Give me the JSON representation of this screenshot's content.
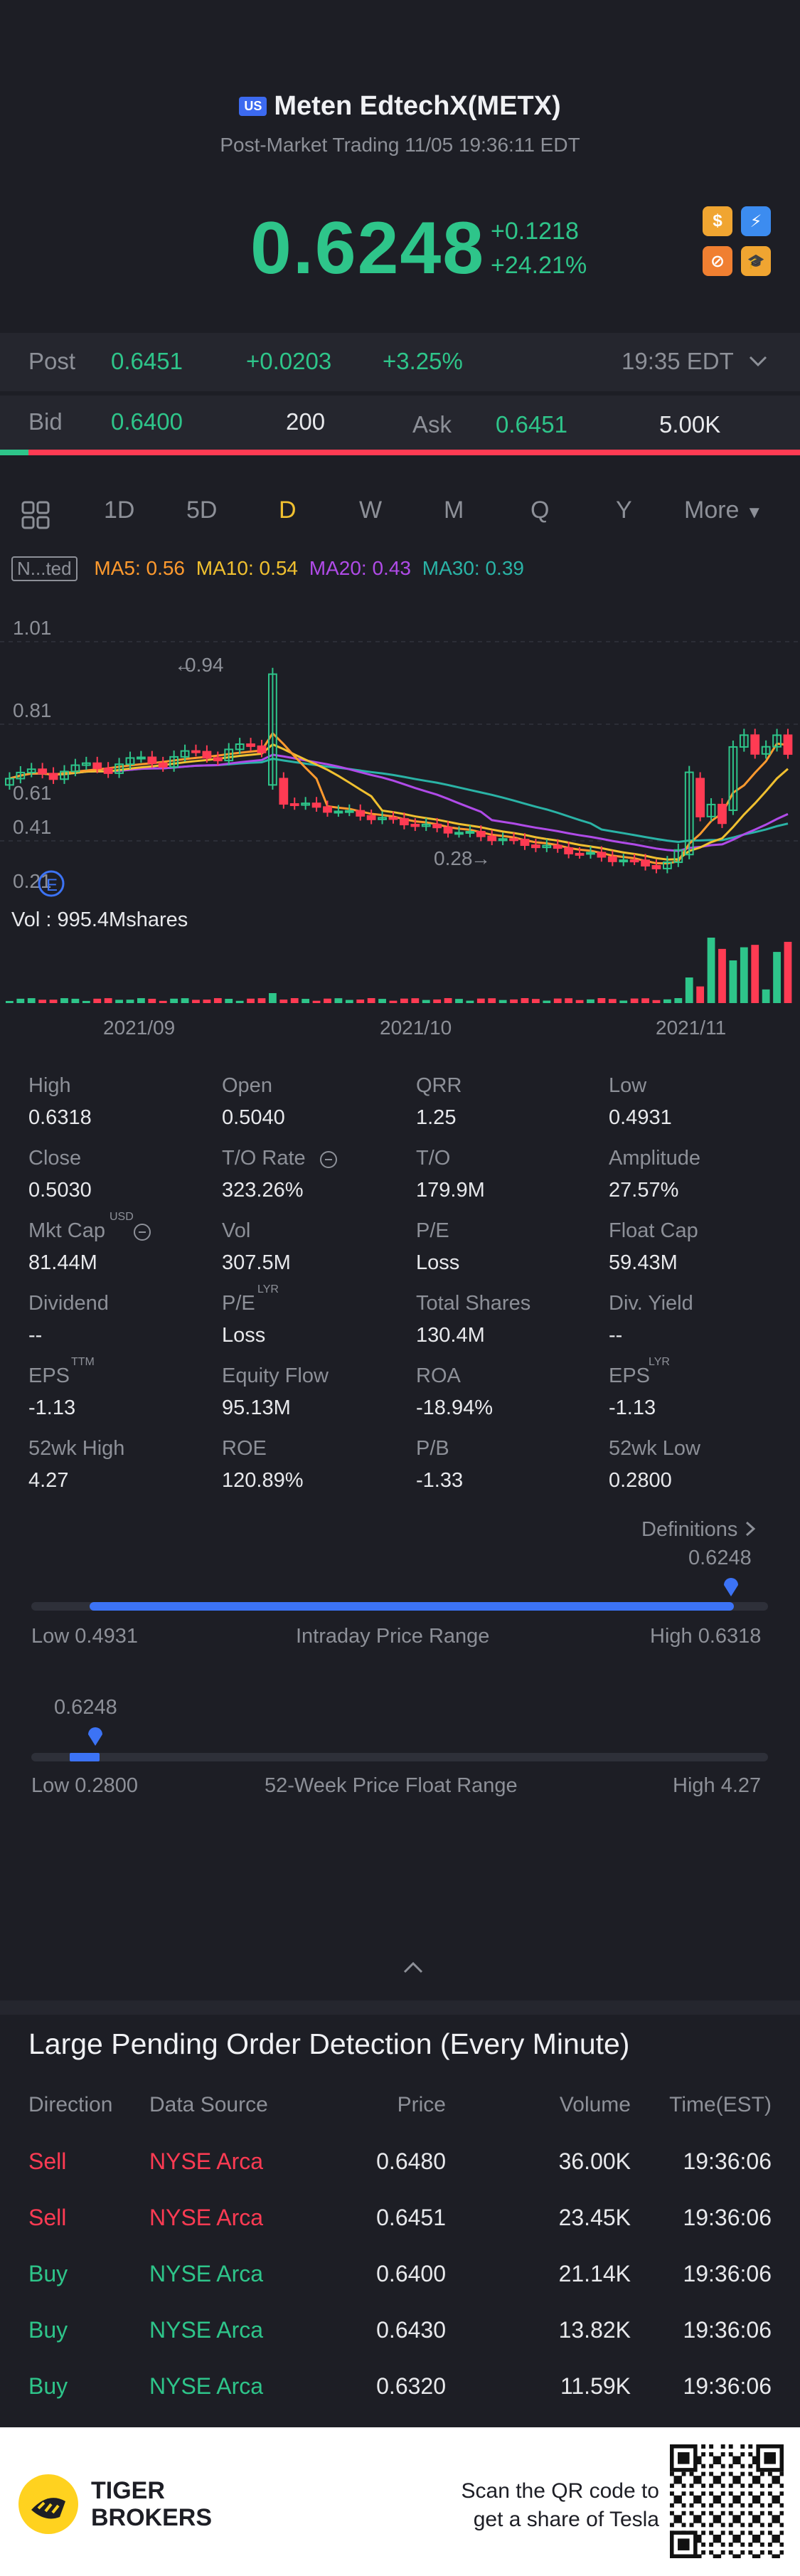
{
  "header": {
    "market_badge": "US",
    "title": "Meten EdtechX(METX)",
    "subtitle": "Post-Market Trading 11/05 19:36:11 EDT",
    "price": "0.6248",
    "change_abs": "+0.1218",
    "change_pct": "+24.21%",
    "badges": [
      "$",
      "⚡",
      "⊘",
      "🎓"
    ]
  },
  "post_row": {
    "label": "Post",
    "price": "0.6451",
    "change_abs": "+0.0203",
    "change_pct": "+3.25%",
    "time": "19:35 EDT"
  },
  "bid_row": {
    "bid_label": "Bid",
    "bid_price": "0.6400",
    "bid_size": "200",
    "ask_label": "Ask",
    "ask_price": "0.6451",
    "ask_size": "5.00K"
  },
  "chart_tabs": [
    "1D",
    "5D",
    "D",
    "W",
    "M",
    "Q",
    "Y"
  ],
  "chart_tab_active": "D",
  "chart_more": "More",
  "ma_legend": {
    "box": "N...ted",
    "ma5": "MA5: 0.56",
    "ma10": "MA10: 0.54",
    "ma20": "MA20: 0.43",
    "ma30": "MA30: 0.39"
  },
  "chart_data": {
    "type": "candlestick",
    "y_ticks": [
      "1.01",
      "0.81",
      "0.61",
      "0.41",
      "0.21"
    ],
    "x_ticks": [
      "2021/09",
      "2021/10",
      "2021/11"
    ],
    "annotations": {
      "high_marker": "0.94",
      "low_marker": "0.28"
    },
    "volume_label": "Vol : 995.4Mshares",
    "colors": {
      "up": "#2ec58a",
      "down": "#ff3b53",
      "ma5": "#ff9a2e",
      "ma10": "#f0c030",
      "ma20": "#b04be8",
      "ma30": "#2ab3a6"
    }
  },
  "stats": [
    {
      "label": "High",
      "value": "0.6318"
    },
    {
      "label": "Open",
      "value": "0.5040"
    },
    {
      "label": "QRR",
      "value": "1.25"
    },
    {
      "label": "Low",
      "value": "0.4931"
    },
    {
      "label": "Close",
      "value": "0.5030"
    },
    {
      "label": "T/O Rate",
      "value": "323.26%"
    },
    {
      "label": "T/O",
      "value": "179.9M"
    },
    {
      "label": "Amplitude",
      "value": "27.57%"
    },
    {
      "label": "Mkt Cap",
      "value": "81.44M"
    },
    {
      "label": "Vol",
      "value": "307.5M"
    },
    {
      "label": "P/E",
      "value": "Loss"
    },
    {
      "label": "Float Cap",
      "value": "59.43M"
    },
    {
      "label": "Dividend",
      "value": "--"
    },
    {
      "label": "P/E",
      "value": "Loss"
    },
    {
      "label": "Total Shares",
      "value": "130.4M"
    },
    {
      "label": "Div. Yield",
      "value": "--"
    },
    {
      "label": "EPS",
      "value": "-1.13"
    },
    {
      "label": "Equity Flow",
      "value": "95.13M"
    },
    {
      "label": "ROA",
      "value": "-18.94%"
    },
    {
      "label": "EPS",
      "value": "-1.13"
    },
    {
      "label": "52wk High",
      "value": "4.27"
    },
    {
      "label": "ROE",
      "value": "120.89%"
    },
    {
      "label": "P/B",
      "value": "-1.33"
    },
    {
      "label": "52wk Low",
      "value": "0.2800"
    }
  ],
  "stat_superscripts": {
    "mktcap": "USD",
    "pe2": "LYR",
    "eps1": "TTM",
    "eps2": "LYR"
  },
  "definitions_link": "Definitions",
  "intraday_range": {
    "current": "0.6248",
    "low": "Low 0.4931",
    "title": "Intraday Price Range",
    "high": "High 0.6318",
    "fraction": 0.93
  },
  "week52_range": {
    "current": "0.6248",
    "low": "Low 0.2800",
    "title": "52-Week Price Float Range",
    "high": "High 4.27",
    "fraction": 0.09
  },
  "pending_orders": {
    "title": "Large Pending Order Detection (Every Minute)",
    "headers": [
      "Direction",
      "Data Source",
      "Price",
      "Volume",
      "Time(EST)"
    ],
    "rows": [
      {
        "direction": "Sell",
        "source": "NYSE Arca",
        "price": "0.6480",
        "volume": "36.00K",
        "time": "19:36:06"
      },
      {
        "direction": "Sell",
        "source": "NYSE Arca",
        "price": "0.6451",
        "volume": "23.45K",
        "time": "19:36:06"
      },
      {
        "direction": "Buy",
        "source": "NYSE Arca",
        "price": "0.6400",
        "volume": "21.14K",
        "time": "19:36:06"
      },
      {
        "direction": "Buy",
        "source": "NYSE Arca",
        "price": "0.6430",
        "volume": "13.82K",
        "time": "19:36:06"
      },
      {
        "direction": "Buy",
        "source": "NYSE Arca",
        "price": "0.6320",
        "volume": "11.59K",
        "time": "19:36:06"
      }
    ]
  },
  "footer": {
    "brand_line1": "TIGER",
    "brand_line2": "BROKERS",
    "promo_line1": "Scan the QR code to",
    "promo_line2": "get a share of Tesla"
  }
}
